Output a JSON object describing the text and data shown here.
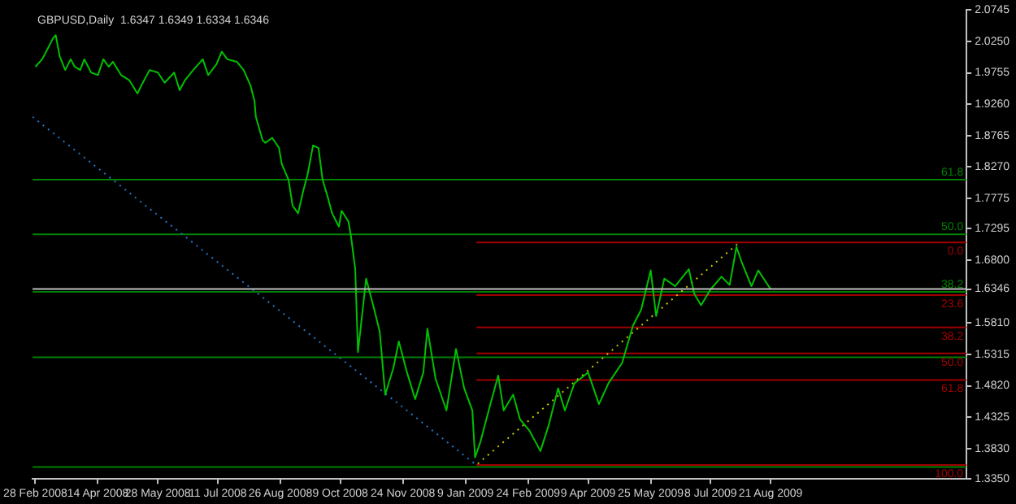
{
  "chart_data": {
    "type": "line",
    "title": "GBPUSD,Daily  1.6347 1.6349 1.6334 1.6346",
    "xlim": [
      "2008-02-26",
      "2010-01-12"
    ],
    "xticks": [
      {
        "value": "2008-02-28",
        "label": "28 Feb 2008"
      },
      {
        "value": "2008-04-14",
        "label": "14 Apr 2008"
      },
      {
        "value": "2008-05-28",
        "label": "28 May 2008"
      },
      {
        "value": "2008-07-11",
        "label": "11 Jul 2008"
      },
      {
        "value": "2008-08-26",
        "label": "26 Aug 2008"
      },
      {
        "value": "2008-10-09",
        "label": "9 Oct 2008"
      },
      {
        "value": "2008-11-24",
        "label": "24 Nov 2008"
      },
      {
        "value": "2009-01-09",
        "label": "9 Jan 2009"
      },
      {
        "value": "2009-02-24",
        "label": "24 Feb 2009"
      },
      {
        "value": "2009-04-09",
        "label": "9 Apr 2009"
      },
      {
        "value": "2009-05-25",
        "label": "25 May 2009"
      },
      {
        "value": "2009-07-08",
        "label": "8 Jul 2009"
      },
      {
        "value": "2009-08-21",
        "label": "21 Aug 2009"
      }
    ],
    "ylim": [
      1.335,
      2.0745
    ],
    "yticks": [
      2.0745,
      {
        "value": 2.025,
        "label": "2.0250"
      },
      1.9755,
      {
        "value": 1.926,
        "label": "1.9260"
      },
      1.8765,
      {
        "value": 1.827,
        "label": "1.8270"
      },
      1.7775,
      1.7295,
      {
        "value": 1.68,
        "label": "1.6800"
      },
      1.6346,
      {
        "value": 1.581,
        "label": "1.5810"
      },
      1.5315,
      {
        "value": 1.482,
        "label": "1.4820"
      },
      1.4325,
      {
        "value": 1.383,
        "label": "1.3830"
      },
      {
        "value": 1.335,
        "label": "1.3350"
      }
    ],
    "grid": false,
    "legend": false,
    "marker": "none",
    "series": [
      {
        "color": "#00c000",
        "x": [
          "2008-02-28",
          "2008-03-04",
          "2008-03-07",
          "2008-03-12",
          "2008-03-14",
          "2008-03-17",
          "2008-03-21",
          "2008-03-25",
          "2008-03-28",
          "2008-04-01",
          "2008-04-04",
          "2008-04-09",
          "2008-04-14",
          "2008-04-18",
          "2008-04-22",
          "2008-04-25",
          "2008-05-01",
          "2008-05-07",
          "2008-05-13",
          "2008-05-16",
          "2008-05-22",
          "2008-05-28",
          "2008-06-02",
          "2008-06-09",
          "2008-06-13",
          "2008-06-17",
          "2008-06-23",
          "2008-06-30",
          "2008-07-04",
          "2008-07-10",
          "2008-07-14",
          "2008-07-18",
          "2008-07-25",
          "2008-07-30",
          "2008-08-04",
          "2008-08-07",
          "2008-08-08",
          "2008-08-13",
          "2008-08-15",
          "2008-08-20",
          "2008-08-25",
          "2008-08-27",
          "2008-09-01",
          "2008-09-04",
          "2008-09-08",
          "2008-09-12",
          "2008-09-15",
          "2008-09-19",
          "2008-09-23",
          "2008-09-26",
          "2008-09-30",
          "2008-10-03",
          "2008-10-08",
          "2008-10-10",
          "2008-10-15",
          "2008-10-17",
          "2008-10-20",
          "2008-10-22",
          "2008-10-28",
          "2008-11-03",
          "2008-11-07",
          "2008-11-11",
          "2008-11-17",
          "2008-11-21",
          "2008-11-27",
          "2008-12-03",
          "2008-12-09",
          "2008-12-12",
          "2008-12-18",
          "2008-12-26",
          "2009-01-02",
          "2009-01-08",
          "2009-01-14",
          "2009-01-16",
          "2009-01-20",
          "2009-01-26",
          "2009-02-02",
          "2009-02-06",
          "2009-02-13",
          "2009-02-18",
          "2009-02-25",
          "2009-03-05",
          "2009-03-11",
          "2009-03-18",
          "2009-03-23",
          "2009-03-30",
          "2009-04-09",
          "2009-04-17",
          "2009-04-24",
          "2009-05-04",
          "2009-05-12",
          "2009-05-18",
          "2009-05-25",
          "2009-05-29",
          "2009-06-04",
          "2009-06-12",
          "2009-06-22",
          "2009-06-26",
          "2009-07-01",
          "2009-07-08",
          "2009-07-16",
          "2009-07-22",
          "2009-07-27",
          "2009-07-31",
          "2009-08-07",
          "2009-08-12",
          "2009-08-21"
        ],
        "values": [
          1.985,
          1.997,
          2.009,
          2.03,
          2.035,
          2.001,
          1.98,
          1.997,
          1.985,
          1.98,
          1.997,
          1.976,
          1.972,
          1.997,
          1.985,
          1.993,
          1.972,
          1.964,
          1.943,
          1.956,
          1.98,
          1.976,
          1.96,
          1.976,
          1.948,
          1.964,
          1.98,
          1.997,
          1.972,
          1.989,
          2.009,
          1.997,
          1.993,
          1.98,
          1.956,
          1.931,
          1.906,
          1.869,
          1.865,
          1.873,
          1.857,
          1.832,
          1.807,
          1.766,
          1.754,
          1.791,
          1.815,
          1.861,
          1.857,
          1.807,
          1.778,
          1.754,
          1.733,
          1.758,
          1.741,
          1.716,
          1.666,
          1.535,
          1.651,
          1.602,
          1.567,
          1.468,
          1.51,
          1.552,
          1.503,
          1.461,
          1.503,
          1.572,
          1.493,
          1.443,
          1.54,
          1.478,
          1.443,
          1.369,
          1.394,
          1.443,
          1.498,
          1.443,
          1.468,
          1.429,
          1.411,
          1.379,
          1.419,
          1.478,
          1.443,
          1.486,
          1.503,
          1.453,
          1.486,
          1.518,
          1.577,
          1.602,
          1.664,
          1.592,
          1.651,
          1.639,
          1.666,
          1.627,
          1.609,
          1.634,
          1.654,
          1.641,
          1.701,
          1.676,
          1.639,
          1.664,
          1.6346
        ]
      },
      {
        "type": "line",
        "color": "#1e78d2",
        "line_style": "dotted",
        "x": [
          "2008-02-26",
          "2009-01-17"
        ],
        "values": [
          1.906,
          1.357
        ]
      },
      {
        "type": "line",
        "color": "#c8c800",
        "line_style": "dotted",
        "x": [
          "2009-01-18",
          "2009-07-28"
        ],
        "values": [
          1.359,
          1.706
        ]
      },
      {
        "type": "line",
        "name": "0.0",
        "color": "#a00000",
        "x": [
          "2009-01-17",
          "2010-01-12"
        ],
        "values": [
          1.708,
          1.708
        ]
      },
      {
        "type": "line",
        "name": "23.6",
        "color": "#a00000",
        "x": [
          "2009-01-17",
          "2010-01-12"
        ],
        "values": [
          1.625,
          1.625
        ]
      },
      {
        "type": "line",
        "name": "38.2",
        "color": "#a00000",
        "x": [
          "2009-01-17",
          "2010-01-12"
        ],
        "values": [
          1.574,
          1.574
        ]
      },
      {
        "type": "line",
        "name": "50.0",
        "color": "#a00000",
        "x": [
          "2009-01-17",
          "2010-01-12"
        ],
        "values": [
          1.533,
          1.533
        ]
      },
      {
        "type": "line",
        "name": "61.8",
        "color": "#a00000",
        "x": [
          "2009-01-17",
          "2010-01-12"
        ],
        "values": [
          1.491,
          1.491
        ]
      },
      {
        "type": "line",
        "name": "100.0",
        "color": "#a00000",
        "x": [
          "2009-01-17",
          "2010-01-12"
        ],
        "values": [
          1.357,
          1.357
        ]
      },
      {
        "type": "line",
        "name": "61.8",
        "color": "#008000",
        "x": [
          "2008-02-26",
          "2010-01-12"
        ],
        "values": [
          1.807,
          1.807
        ]
      },
      {
        "type": "line",
        "name": "50.0",
        "color": "#008000",
        "x": [
          "2008-02-26",
          "2010-01-12"
        ],
        "values": [
          1.721,
          1.721
        ]
      },
      {
        "type": "line",
        "name": "38.2",
        "color": "#008000",
        "x": [
          "2008-02-26",
          "2010-01-12"
        ],
        "values": [
          1.63,
          1.63
        ]
      },
      {
        "type": "line",
        "color": "#008000",
        "x": [
          "2008-02-26",
          "2010-01-12"
        ],
        "values": [
          1.527,
          1.527
        ]
      },
      {
        "type": "line",
        "color": "#008000",
        "x": [
          "2008-02-26",
          "2010-01-12"
        ],
        "values": [
          1.354,
          1.354
        ]
      }
    ],
    "ref_lines": [
      {
        "axis": "y",
        "value": 1.6346,
        "color": "#c0c0c0"
      }
    ]
  }
}
